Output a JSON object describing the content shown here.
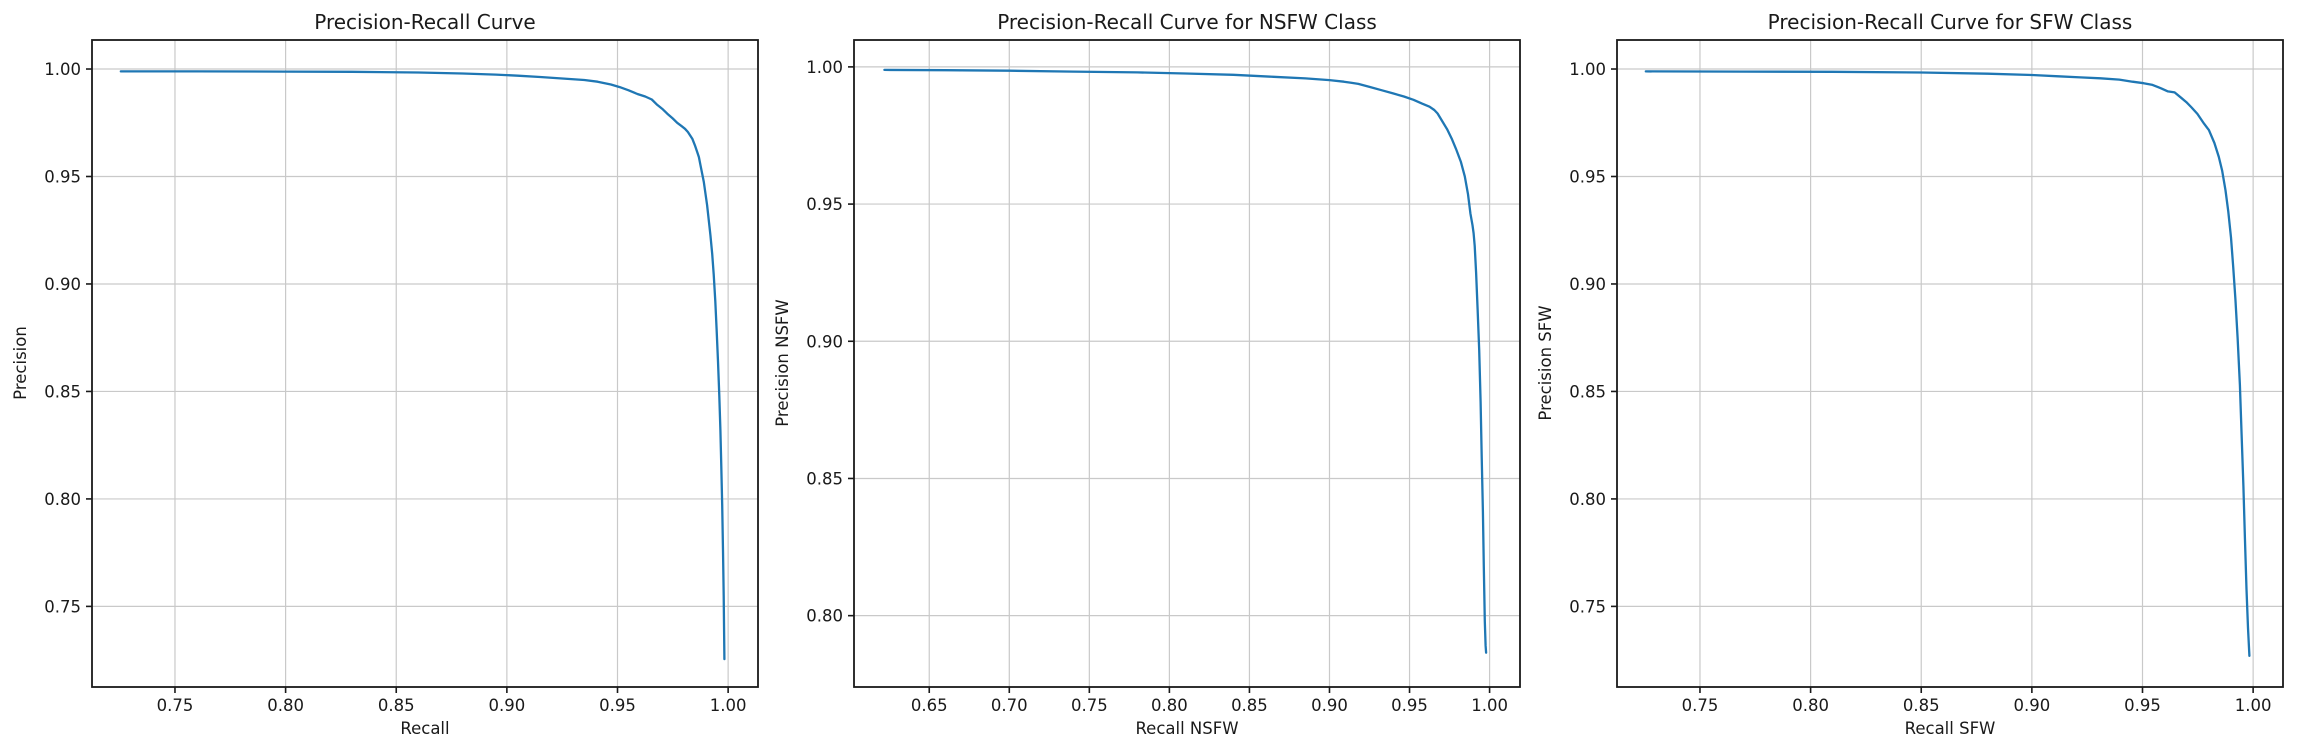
{
  "figure": {
    "background_color": "#ffffff",
    "curve_color": "#1f77b4",
    "grid_color": "#c9c9c9",
    "spine_color": "#1a1a1a",
    "text_color": "#1a1a1a"
  },
  "chart_data": [
    {
      "type": "line",
      "title": "Precision-Recall Curve",
      "xlabel": "Recall",
      "ylabel": "Precision",
      "xlim": [
        0.7125,
        1.0135
      ],
      "ylim": [
        0.7125,
        1.0135
      ],
      "xticks": [
        0.75,
        0.8,
        0.85,
        0.9,
        0.95,
        1.0
      ],
      "yticks": [
        0.75,
        0.8,
        0.85,
        0.9,
        0.95,
        1.0
      ],
      "grid": true,
      "legend": null,
      "series": [
        {
          "name": "precision-recall",
          "color": "#1f77b4",
          "points": [
            [
              0.7255,
              0.9989
            ],
            [
              0.76,
              0.9989
            ],
            [
              0.8,
              0.9988
            ],
            [
              0.83,
              0.9987
            ],
            [
              0.86,
              0.9984
            ],
            [
              0.88,
              0.9979
            ],
            [
              0.895,
              0.9974
            ],
            [
              0.905,
              0.9969
            ],
            [
              0.915,
              0.9963
            ],
            [
              0.925,
              0.9956
            ],
            [
              0.935,
              0.9949
            ],
            [
              0.941,
              0.9941
            ],
            [
              0.947,
              0.9928
            ],
            [
              0.951,
              0.9916
            ],
            [
              0.955,
              0.9901
            ],
            [
              0.959,
              0.9884
            ],
            [
              0.9625,
              0.9872
            ],
            [
              0.9655,
              0.9858
            ],
            [
              0.968,
              0.9833
            ],
            [
              0.9705,
              0.9812
            ],
            [
              0.9725,
              0.9792
            ],
            [
              0.975,
              0.977
            ],
            [
              0.977,
              0.975
            ],
            [
              0.979,
              0.9734
            ],
            [
              0.9805,
              0.9722
            ],
            [
              0.9818,
              0.9707
            ],
            [
              0.9838,
              0.9676
            ],
            [
              0.985,
              0.9645
            ],
            [
              0.986,
              0.9614
            ],
            [
              0.9868,
              0.959
            ],
            [
              0.9875,
              0.9552
            ],
            [
              0.989,
              0.9475
            ],
            [
              0.9905,
              0.9367
            ],
            [
              0.992,
              0.9228
            ],
            [
              0.9928,
              0.914
            ],
            [
              0.9935,
              0.9045
            ],
            [
              0.9942,
              0.892
            ],
            [
              0.9948,
              0.879
            ],
            [
              0.9954,
              0.864
            ],
            [
              0.996,
              0.848
            ],
            [
              0.9965,
              0.832
            ],
            [
              0.9969,
              0.815
            ],
            [
              0.9973,
              0.797
            ],
            [
              0.9977,
              0.776
            ],
            [
              0.998,
              0.755
            ],
            [
              0.9982,
              0.738
            ],
            [
              0.9983,
              0.7255
            ]
          ]
        }
      ]
    },
    {
      "type": "line",
      "title": "Precision-Recall Curve for NSFW Class",
      "xlabel": "Recall NSFW",
      "ylabel": "Precision NSFW",
      "xlim": [
        0.603,
        1.019
      ],
      "ylim": [
        0.774,
        1.0098
      ],
      "xticks": [
        0.65,
        0.7,
        0.75,
        0.8,
        0.85,
        0.9,
        0.95,
        1.0
      ],
      "yticks": [
        0.8,
        0.85,
        0.9,
        0.95,
        1.0
      ],
      "grid": true,
      "legend": null,
      "series": [
        {
          "name": "precision-recall-nsfw",
          "color": "#1f77b4",
          "points": [
            [
              0.622,
              0.9989
            ],
            [
              0.66,
              0.9988
            ],
            [
              0.7,
              0.9986
            ],
            [
              0.74,
              0.9983
            ],
            [
              0.78,
              0.998
            ],
            [
              0.81,
              0.9976
            ],
            [
              0.84,
              0.9971
            ],
            [
              0.865,
              0.9964
            ],
            [
              0.885,
              0.9958
            ],
            [
              0.9,
              0.9952
            ],
            [
              0.909,
              0.9946
            ],
            [
              0.9135,
              0.9942
            ],
            [
              0.918,
              0.9938
            ],
            [
              0.925,
              0.9927
            ],
            [
              0.9325,
              0.9915
            ],
            [
              0.94,
              0.9903
            ],
            [
              0.9465,
              0.9892
            ],
            [
              0.9525,
              0.988
            ],
            [
              0.958,
              0.9866
            ],
            [
              0.9625,
              0.9855
            ],
            [
              0.9655,
              0.9843
            ],
            [
              0.9675,
              0.983
            ],
            [
              0.97,
              0.9806
            ],
            [
              0.9735,
              0.9772
            ],
            [
              0.9765,
              0.9736
            ],
            [
              0.979,
              0.9701
            ],
            [
              0.982,
              0.9655
            ],
            [
              0.9845,
              0.9601
            ],
            [
              0.9865,
              0.9536
            ],
            [
              0.988,
              0.9466
            ],
            [
              0.9893,
              0.9423
            ],
            [
              0.99,
              0.9394
            ],
            [
              0.9907,
              0.9348
            ],
            [
              0.9916,
              0.925
            ],
            [
              0.9925,
              0.9118
            ],
            [
              0.9935,
              0.8968
            ],
            [
              0.9944,
              0.878
            ],
            [
              0.9951,
              0.858
            ],
            [
              0.9958,
              0.838
            ],
            [
              0.9964,
              0.818
            ],
            [
              0.997,
              0.798
            ],
            [
              0.9975,
              0.7891
            ],
            [
              0.9978,
              0.7865
            ]
          ]
        }
      ]
    },
    {
      "type": "line",
      "title": "Precision-Recall Curve for SFW Class",
      "xlabel": "Recall SFW",
      "ylabel": "Precision SFW",
      "xlim": [
        0.7125,
        1.0135
      ],
      "ylim": [
        0.7125,
        1.0135
      ],
      "xticks": [
        0.75,
        0.8,
        0.85,
        0.9,
        0.95,
        1.0
      ],
      "yticks": [
        0.75,
        0.8,
        0.85,
        0.9,
        0.95,
        1.0
      ],
      "grid": true,
      "legend": null,
      "series": [
        {
          "name": "precision-recall-sfw",
          "color": "#1f77b4",
          "points": [
            [
              0.7255,
              0.9989
            ],
            [
              0.77,
              0.9988
            ],
            [
              0.81,
              0.9987
            ],
            [
              0.85,
              0.9984
            ],
            [
              0.88,
              0.9978
            ],
            [
              0.9,
              0.9972
            ],
            [
              0.912,
              0.9966
            ],
            [
              0.922,
              0.9961
            ],
            [
              0.931,
              0.9957
            ],
            [
              0.9395,
              0.9951
            ],
            [
              0.9455,
              0.9941
            ],
            [
              0.9505,
              0.9934
            ],
            [
              0.9545,
              0.9926
            ],
            [
              0.9585,
              0.991
            ],
            [
              0.9615,
              0.9896
            ],
            [
              0.9645,
              0.9891
            ],
            [
              0.9675,
              0.9866
            ],
            [
              0.9698,
              0.9846
            ],
            [
              0.9722,
              0.9821
            ],
            [
              0.9748,
              0.9791
            ],
            [
              0.9778,
              0.9746
            ],
            [
              0.98,
              0.9716
            ],
            [
              0.9825,
              0.9656
            ],
            [
              0.9845,
              0.9591
            ],
            [
              0.986,
              0.9526
            ],
            [
              0.9875,
              0.9436
            ],
            [
              0.9888,
              0.9336
            ],
            [
              0.99,
              0.9216
            ],
            [
              0.991,
              0.908
            ],
            [
              0.992,
              0.893
            ],
            [
              0.993,
              0.875
            ],
            [
              0.994,
              0.853
            ],
            [
              0.9948,
              0.83
            ],
            [
              0.9956,
              0.806
            ],
            [
              0.9963,
              0.782
            ],
            [
              0.997,
              0.758
            ],
            [
              0.9977,
              0.74
            ],
            [
              0.9983,
              0.727
            ]
          ]
        }
      ]
    }
  ]
}
